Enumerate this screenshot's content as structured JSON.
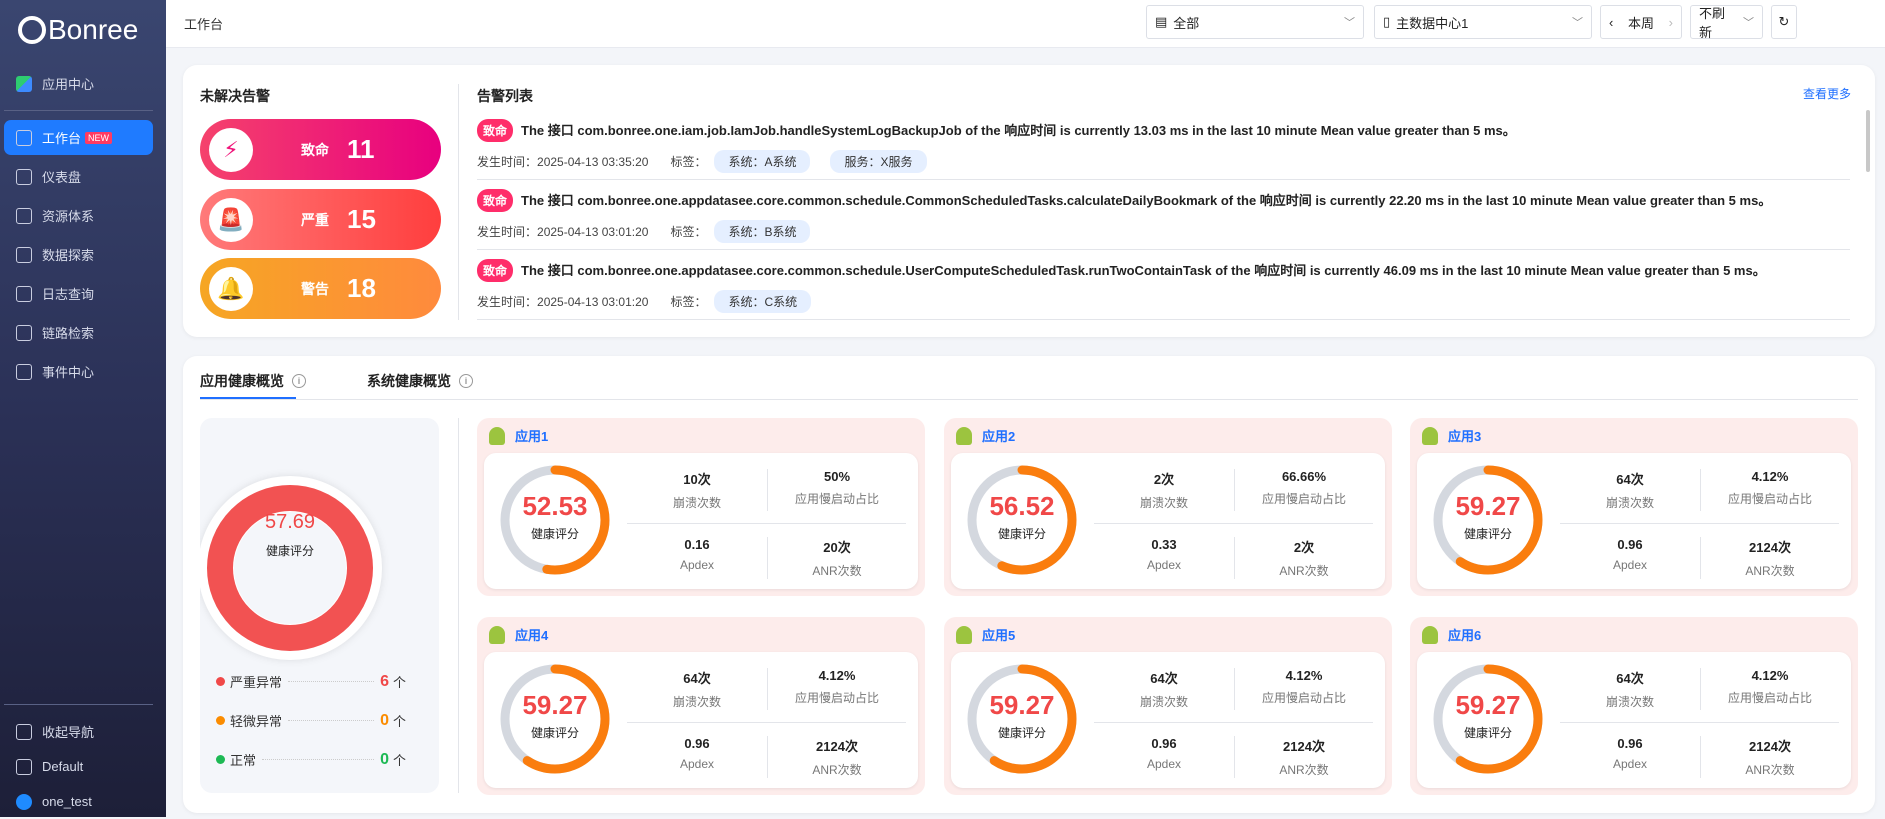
{
  "brand": "Bonree",
  "sidebar": {
    "items": [
      {
        "label": "应用中心",
        "icon": "apps-grid-icon"
      },
      {
        "label": "工作台",
        "icon": "workbench-icon",
        "badge": "NEW",
        "active": true
      },
      {
        "label": "仪表盘",
        "icon": "dashboard-gauge-icon"
      },
      {
        "label": "资源体系",
        "icon": "layers-icon"
      },
      {
        "label": "数据探索",
        "icon": "chart-icon"
      },
      {
        "label": "日志查询",
        "icon": "log-icon"
      },
      {
        "label": "链路检索",
        "icon": "trace-search-icon"
      },
      {
        "label": "事件中心",
        "icon": "folder-icon"
      }
    ],
    "bottom": [
      {
        "label": "收起导航",
        "icon": "collapse-icon"
      },
      {
        "label": "Default",
        "icon": "workspace-icon"
      },
      {
        "label": "one_test",
        "icon": "user-avatar-icon"
      }
    ]
  },
  "topbar": {
    "breadcrumb": "工作台",
    "scope": "全部",
    "datacenter": "主数据中心1",
    "period": "本周",
    "refresh": "不刷新"
  },
  "alerts": {
    "title": "未解决告警",
    "levels": [
      {
        "label": "致命",
        "count": "11",
        "color": "#f0157a"
      },
      {
        "label": "严重",
        "count": "15",
        "color": "#ff4848"
      },
      {
        "label": "警告",
        "count": "18",
        "color": "#fb8c2a"
      }
    ]
  },
  "alert_list": {
    "title": "告警列表",
    "more": "查看更多",
    "time_label": "发生时间：",
    "tag_label": "标签：",
    "items": [
      {
        "level": "致命",
        "text": "The 接口 com.bonree.one.iam.job.IamJob.handleSystemLogBackupJob of the 响应时间 is currently 13.03 ms in the last 10 minute Mean value greater than 5 ms。",
        "time": "2025-04-13 03:35:20",
        "tags": [
          "系统：A系统",
          "服务：X服务"
        ]
      },
      {
        "level": "致命",
        "text": "The 接口 com.bonree.one.appdatasee.core.common.schedule.CommonScheduledTasks.calculateDailyBookmark of the 响应时间 is currently 22.20 ms in the last 10 minute Mean value greater than 5 ms。",
        "time": "2025-04-13 03:01:20",
        "tags": [
          "系统：B系统"
        ]
      },
      {
        "level": "致命",
        "text": "The 接口 com.bonree.one.appdatasee.core.common.schedule.UserComputeScheduledTask.runTwoContainTask of the 响应时间 is currently 46.09 ms in the last 10 minute Mean value greater than 5 ms。",
        "time": "2025-04-13 03:01:20",
        "tags": [
          "系统：C系统"
        ]
      }
    ]
  },
  "health": {
    "tabs": [
      "应用健康概览",
      "系统健康概览"
    ],
    "overall": {
      "score": "57.69",
      "label": "健康评分"
    },
    "legend": [
      {
        "label": "严重异常",
        "count": "6",
        "unit": "个",
        "color": "#f04848"
      },
      {
        "label": "轻微异常",
        "count": "0",
        "unit": "个",
        "color": "#fb8c00"
      },
      {
        "label": "正常",
        "count": "0",
        "unit": "个",
        "color": "#1db954"
      }
    ],
    "metric_labels": [
      "崩溃次数",
      "应用慢启动占比",
      "Apdex",
      "ANR次数"
    ],
    "apps": [
      {
        "name": "应用1",
        "score": "52.53",
        "crash": "10次",
        "slow": "50%",
        "apdex": "0.16",
        "anr": "20次"
      },
      {
        "name": "应用2",
        "score": "56.52",
        "crash": "2次",
        "slow": "66.66%",
        "apdex": "0.33",
        "anr": "2次"
      },
      {
        "name": "应用3",
        "score": "59.27",
        "crash": "64次",
        "slow": "4.12%",
        "apdex": "0.96",
        "anr": "2124次"
      },
      {
        "name": "应用4",
        "score": "59.27",
        "crash": "64次",
        "slow": "4.12%",
        "apdex": "0.96",
        "anr": "2124次"
      },
      {
        "name": "应用5",
        "score": "59.27",
        "crash": "64次",
        "slow": "4.12%",
        "apdex": "0.96",
        "anr": "2124次"
      },
      {
        "name": "应用6",
        "score": "59.27",
        "crash": "64次",
        "slow": "4.12%",
        "apdex": "0.96",
        "anr": "2124次"
      }
    ]
  }
}
